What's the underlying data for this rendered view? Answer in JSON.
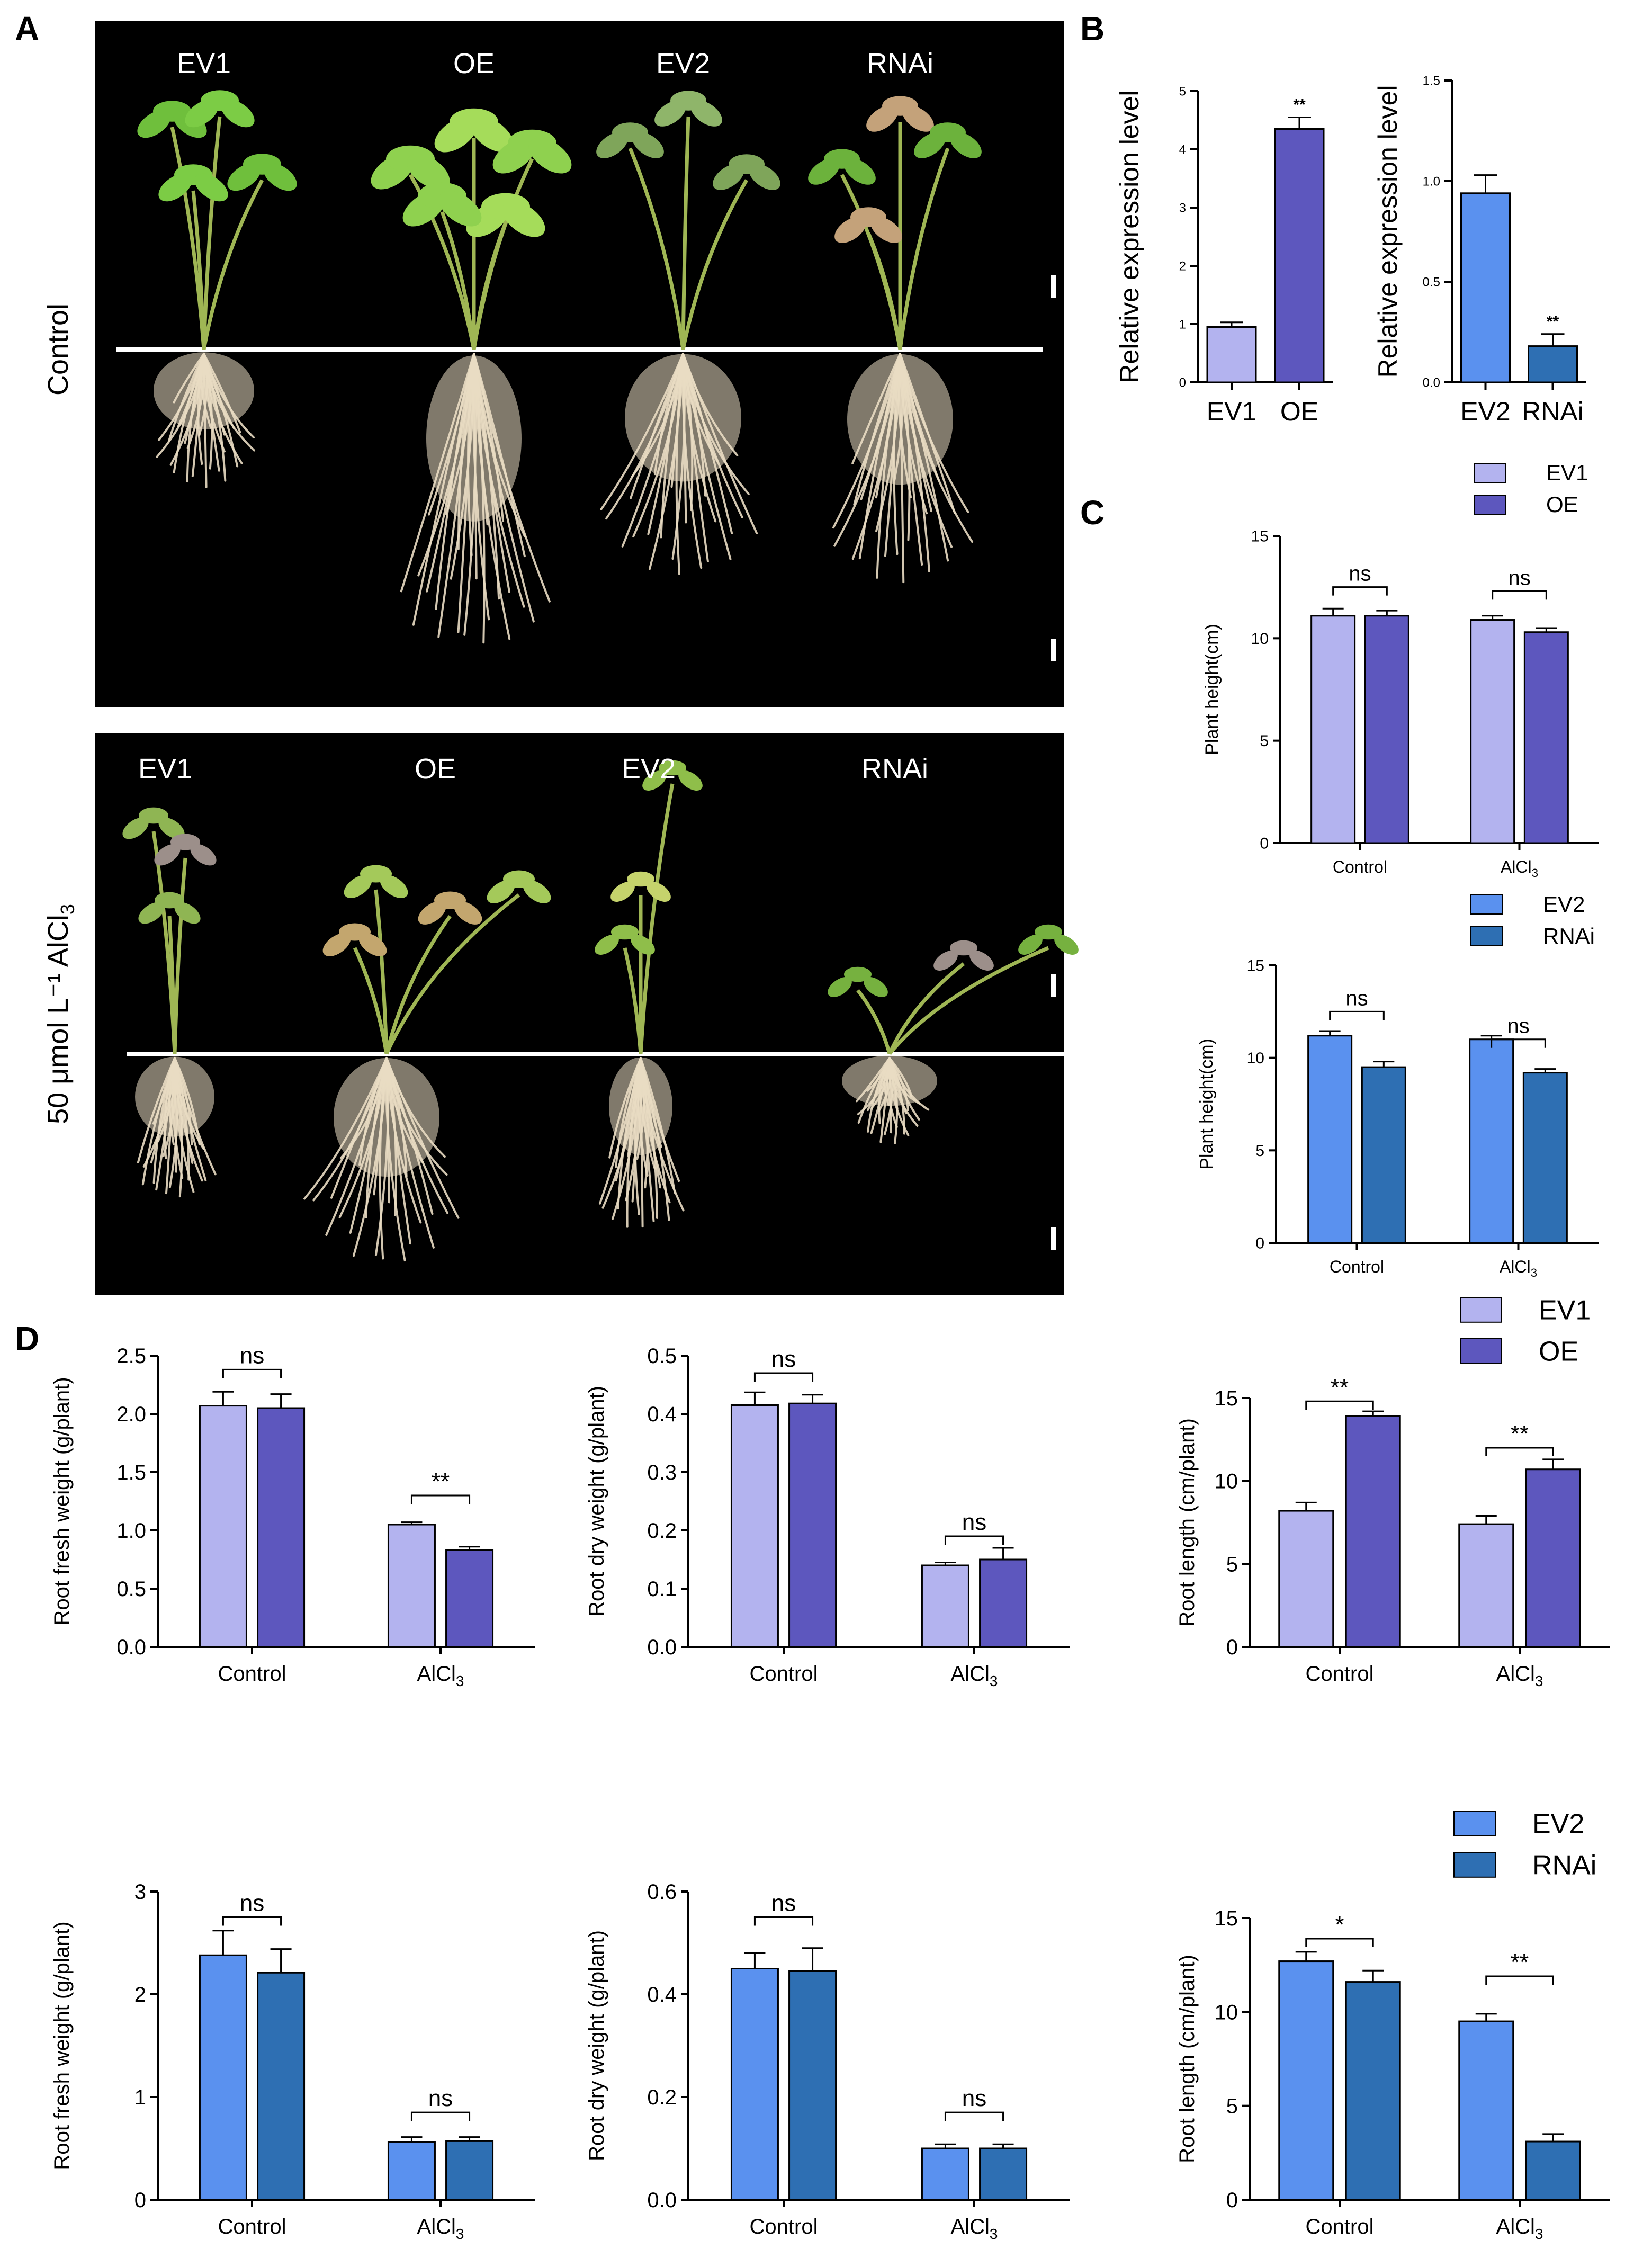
{
  "panels": {
    "A": "A",
    "B": "B",
    "C": "C",
    "D": "D"
  },
  "photos": {
    "row_labels": [
      "Control",
      "50 μmol L⁻¹ AlCl"
    ],
    "row_label_subscript": "3",
    "control_plants": [
      "EV1",
      "OE",
      "EV2",
      "RNAi"
    ],
    "al_plants": [
      "EV1",
      "OE",
      "EV2",
      "RNAi"
    ]
  },
  "colors": {
    "EV1": "#b3b3ef",
    "OE": "#5d57be",
    "EV2": "#5a91ef",
    "RNAi": "#2e6fb3",
    "photo_bg": "#000000",
    "leaf": "#7fbf3a",
    "root": "#e9dcc3"
  },
  "chart_data": [
    {
      "id": "B-left",
      "type": "bar",
      "categories": [
        "EV1",
        "OE"
      ],
      "values": [
        0.95,
        4.35
      ],
      "errors": [
        0.08,
        0.2
      ],
      "colors": [
        "EV1",
        "OE"
      ],
      "ylabel": "Relative expression level",
      "ylim": [
        0,
        5
      ],
      "yticks": [
        0,
        1,
        2,
        3,
        4,
        5
      ],
      "ytick_labels": [
        "0",
        "1",
        "2",
        "3",
        "4",
        "5"
      ],
      "annotations": [
        {
          "text": "**",
          "bar": 1
        }
      ]
    },
    {
      "id": "B-right",
      "type": "bar",
      "categories": [
        "EV2",
        "RNAi"
      ],
      "values": [
        0.94,
        0.18
      ],
      "errors": [
        0.09,
        0.06
      ],
      "colors": [
        "EV2",
        "RNAi"
      ],
      "ylabel": "Relative expression level",
      "ylim": [
        0,
        1.5
      ],
      "yticks": [
        0,
        0.5,
        1.0,
        1.5
      ],
      "ytick_labels": [
        "0.0",
        "0.5",
        "1.0",
        "1.5"
      ],
      "annotations": [
        {
          "text": "**",
          "bar": 1
        }
      ]
    },
    {
      "id": "C-top",
      "type": "bar",
      "categories": [
        "Control",
        "AlCl"
      ],
      "series": [
        {
          "name": "EV1",
          "values": [
            11.1,
            10.9
          ],
          "errors": [
            0.35,
            0.2
          ]
        },
        {
          "name": "OE",
          "values": [
            11.1,
            10.3
          ],
          "errors": [
            0.25,
            0.2
          ]
        }
      ],
      "ylabel": "Plant height(cm)",
      "ylim": [
        0,
        15
      ],
      "yticks": [
        0,
        5,
        10,
        15
      ],
      "ytick_labels": [
        "0",
        "5",
        "10",
        "15"
      ],
      "brackets": [
        {
          "group": 0,
          "text": "ns",
          "y": 12.5
        },
        {
          "group": 1,
          "text": "ns",
          "y": 12.3
        }
      ]
    },
    {
      "id": "C-bottom",
      "type": "bar",
      "categories": [
        "Control",
        "AlCl"
      ],
      "series": [
        {
          "name": "EV2",
          "values": [
            11.2,
            11.0
          ],
          "errors": [
            0.25,
            0.2
          ]
        },
        {
          "name": "RNAi",
          "values": [
            9.5,
            9.2
          ],
          "errors": [
            0.3,
            0.2
          ]
        }
      ],
      "series_by_group": true,
      "ylabel": "Plant height(cm)",
      "ylim": [
        0,
        15
      ],
      "yticks": [
        0,
        5,
        10,
        15
      ],
      "ytick_labels": [
        "0",
        "5",
        "10",
        "15"
      ],
      "brackets": [
        {
          "group": 0,
          "text": "ns",
          "y": 12.5
        },
        {
          "group": 1,
          "text": "ns",
          "y": 11.0
        }
      ]
    },
    {
      "id": "D-fw-top",
      "type": "bar",
      "categories": [
        "Control",
        "AlCl"
      ],
      "series": [
        {
          "name": "EV1",
          "values": [
            2.07,
            1.05
          ],
          "errors": [
            0.12,
            0.02
          ]
        },
        {
          "name": "OE",
          "values": [
            2.05,
            0.83
          ],
          "errors": [
            0.12,
            0.03
          ]
        }
      ],
      "ylabel": "Root fresh weight (g/plant)",
      "ylim": [
        0,
        2.5
      ],
      "yticks": [
        0,
        0.5,
        1.0,
        1.5,
        2.0,
        2.5
      ],
      "ytick_labels": [
        "0.0",
        "0.5",
        "1.0",
        "1.5",
        "2.0",
        "2.5"
      ],
      "brackets": [
        {
          "group": 0,
          "text": "ns",
          "y": 2.38
        },
        {
          "group": 1,
          "text": "**",
          "y": 1.3
        }
      ]
    },
    {
      "id": "D-dw-top",
      "type": "bar",
      "categories": [
        "Control",
        "AlCl"
      ],
      "series": [
        {
          "name": "EV1",
          "values": [
            0.415,
            0.14
          ],
          "errors": [
            0.022,
            0.005
          ]
        },
        {
          "name": "OE",
          "values": [
            0.418,
            0.15
          ],
          "errors": [
            0.015,
            0.02
          ]
        }
      ],
      "ylabel": "Root dry weight (g/plant)",
      "ylim": [
        0,
        0.5
      ],
      "yticks": [
        0,
        0.1,
        0.2,
        0.3,
        0.4,
        0.5
      ],
      "ytick_labels": [
        "0.0",
        "0.1",
        "0.2",
        "0.3",
        "0.4",
        "0.5"
      ],
      "brackets": [
        {
          "group": 0,
          "text": "ns",
          "y": 0.47
        },
        {
          "group": 1,
          "text": "ns",
          "y": 0.19
        }
      ]
    },
    {
      "id": "D-rl-top",
      "type": "bar",
      "categories": [
        "Control",
        "AlCl"
      ],
      "series": [
        {
          "name": "EV1",
          "values": [
            8.2,
            7.4
          ],
          "errors": [
            0.5,
            0.5
          ]
        },
        {
          "name": "OE",
          "values": [
            13.9,
            10.7
          ],
          "errors": [
            0.3,
            0.6
          ]
        }
      ],
      "ylabel": "Root length (cm/plant)",
      "ylim": [
        0,
        15
      ],
      "yticks": [
        0,
        5,
        10,
        15
      ],
      "ytick_labels": [
        "0",
        "5",
        "10",
        "15"
      ],
      "brackets": [
        {
          "group": 0,
          "text": "**",
          "y": 14.8
        },
        {
          "group": 1,
          "text": "**",
          "y": 12.0
        }
      ]
    },
    {
      "id": "D-fw-bottom",
      "type": "bar",
      "categories": [
        "Control",
        "AlCl"
      ],
      "series": [
        {
          "name": "EV2",
          "values": [
            2.38,
            0.56
          ],
          "errors": [
            0.24,
            0.05
          ]
        },
        {
          "name": "RNAi",
          "values": [
            2.21,
            0.57
          ],
          "errors": [
            0.23,
            0.04
          ]
        }
      ],
      "ylabel": "Root fresh weight (g/plant)",
      "ylim": [
        0,
        3
      ],
      "yticks": [
        0,
        1,
        2,
        3
      ],
      "ytick_labels": [
        "0",
        "1",
        "2",
        "3"
      ],
      "brackets": [
        {
          "group": 0,
          "text": "ns",
          "y": 2.75
        },
        {
          "group": 1,
          "text": "ns",
          "y": 0.85
        }
      ]
    },
    {
      "id": "D-dw-bottom",
      "type": "bar",
      "categories": [
        "Control",
        "AlCl"
      ],
      "series": [
        {
          "name": "EV2",
          "values": [
            0.45,
            0.1
          ],
          "errors": [
            0.03,
            0.008
          ]
        },
        {
          "name": "RNAi",
          "values": [
            0.445,
            0.1
          ],
          "errors": [
            0.045,
            0.008
          ]
        }
      ],
      "ylabel": "Root dry weight (g/plant)",
      "ylim": [
        0,
        0.6
      ],
      "yticks": [
        0,
        0.2,
        0.4,
        0.6
      ],
      "ytick_labels": [
        "0.0",
        "0.2",
        "0.4",
        "0.6"
      ],
      "brackets": [
        {
          "group": 0,
          "text": "ns",
          "y": 0.55
        },
        {
          "group": 1,
          "text": "ns",
          "y": 0.17
        }
      ]
    },
    {
      "id": "D-rl-bottom",
      "type": "bar",
      "categories": [
        "Control",
        "AlCl"
      ],
      "series": [
        {
          "name": "EV2",
          "values": [
            12.7,
            9.5
          ],
          "errors": [
            0.5,
            0.4
          ]
        },
        {
          "name": "RNAi",
          "values": [
            11.6,
            3.1
          ],
          "errors": [
            0.6,
            0.4
          ]
        }
      ],
      "ylabel": "Root length (cm/plant)",
      "ylim": [
        0,
        15
      ],
      "yticks": [
        0,
        5,
        10,
        15
      ],
      "ytick_labels": [
        "0",
        "5",
        "10",
        "15"
      ],
      "brackets": [
        {
          "group": 0,
          "text": "*",
          "y": 13.9
        },
        {
          "group": 1,
          "text": "**",
          "y": 11.9
        }
      ]
    }
  ],
  "subscript": "3",
  "legends": [
    {
      "id": "legend-C-top",
      "items": [
        "EV1",
        "OE"
      ]
    },
    {
      "id": "legend-C-bottom",
      "items": [
        "EV2",
        "RNAi"
      ]
    },
    {
      "id": "legend-D-top",
      "items": [
        "EV1",
        "OE"
      ]
    },
    {
      "id": "legend-D-bottom",
      "items": [
        "EV2",
        "RNAi"
      ]
    }
  ]
}
